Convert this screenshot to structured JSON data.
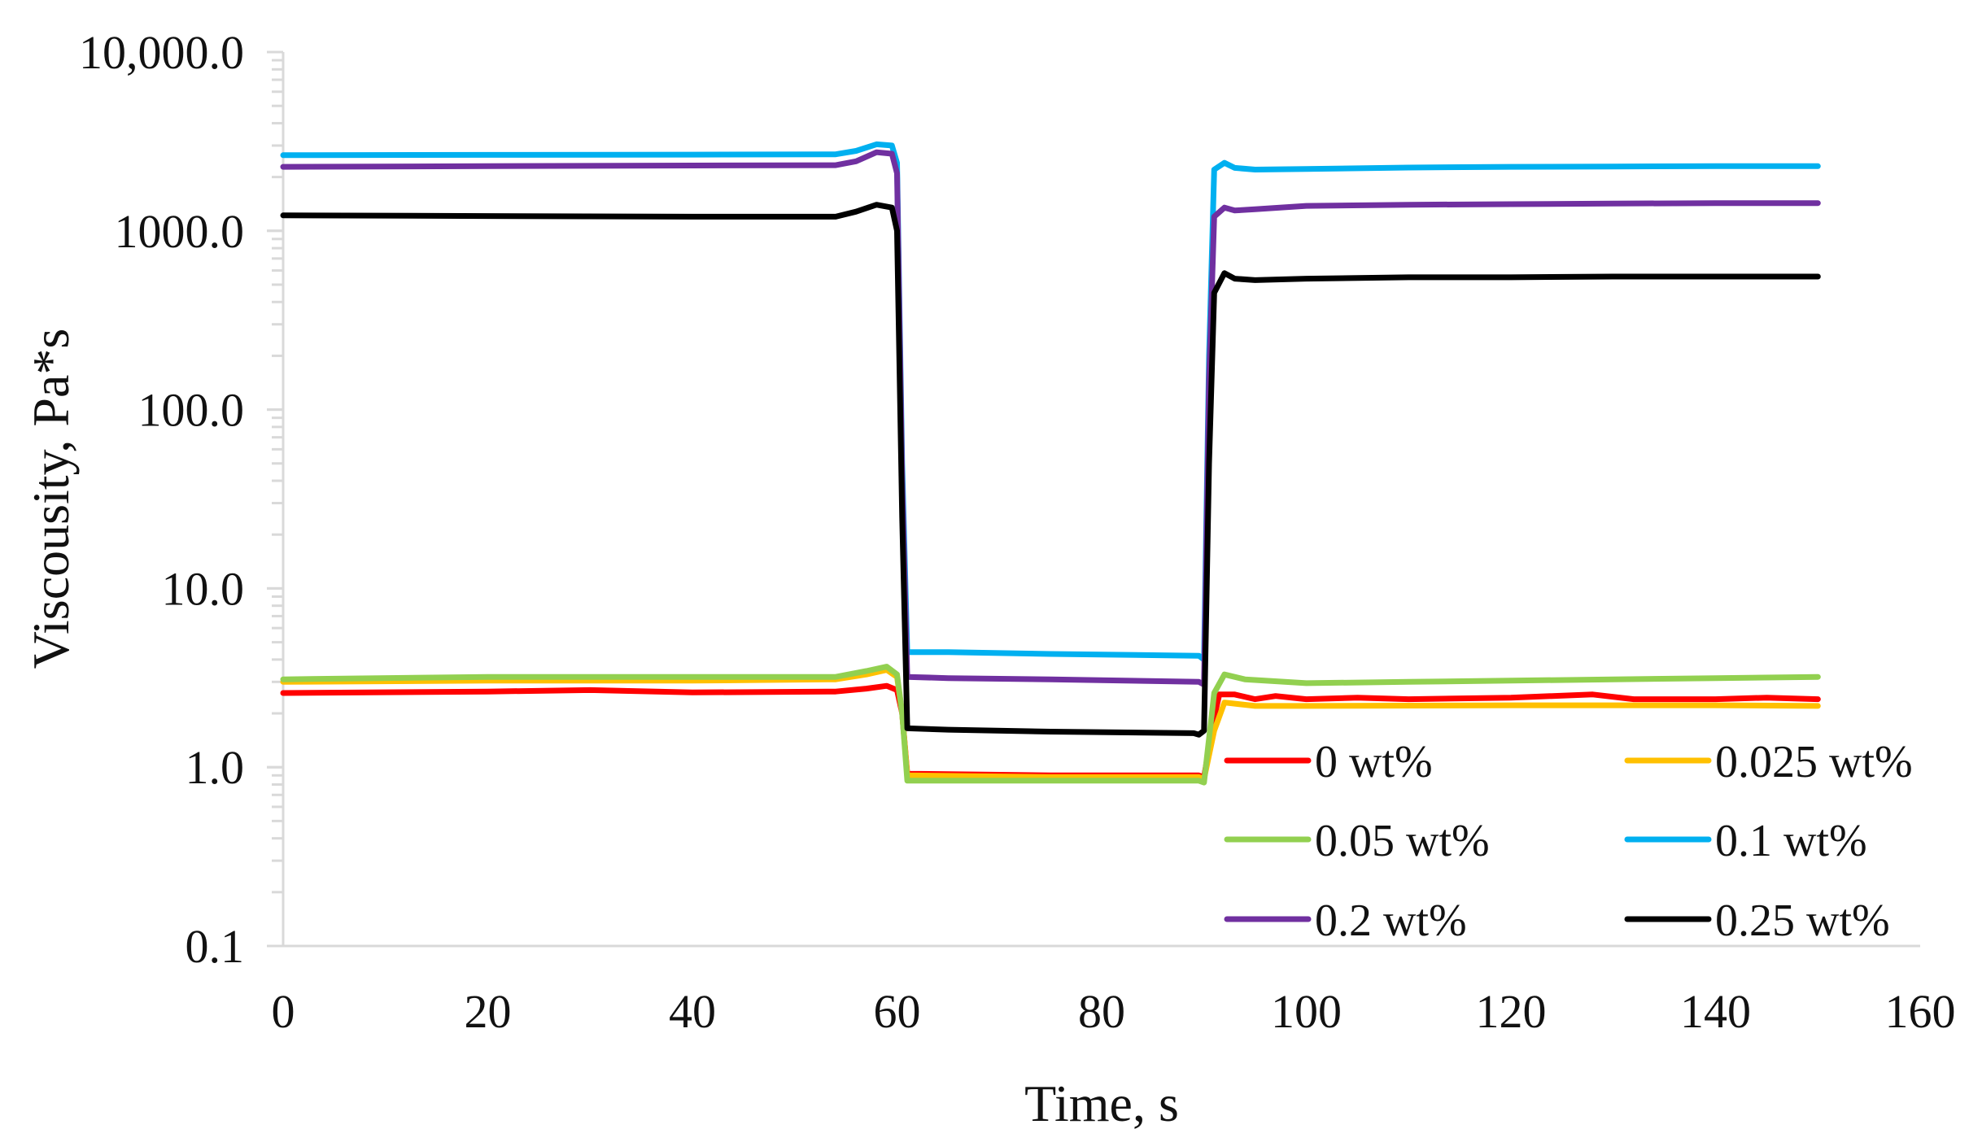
{
  "chart_data": {
    "type": "line",
    "title": "",
    "xlabel": "Time, s",
    "ylabel": "Viscousity, Pa*s",
    "xlim": [
      0,
      160
    ],
    "ylim": [
      0.1,
      10000
    ],
    "yscale": "log",
    "grid": false,
    "legend_position": "bottom-right",
    "x_ticks": [
      0,
      20,
      40,
      60,
      80,
      100,
      120,
      140,
      160
    ],
    "x_tick_labels": [
      "0",
      "20",
      "40",
      "60",
      "80",
      "100",
      "120",
      "140",
      "160"
    ],
    "y_ticks": [
      0.1,
      1,
      10,
      100,
      1000,
      10000
    ],
    "y_tick_labels": [
      "0.1",
      "1.0",
      "10.0",
      "100.0",
      "1000.0",
      "10,000.0"
    ],
    "series": [
      {
        "name": "0 wt%",
        "color": "#ff0000",
        "points": [
          [
            0,
            2.6
          ],
          [
            20,
            2.65
          ],
          [
            30,
            2.7
          ],
          [
            40,
            2.62
          ],
          [
            54,
            2.65
          ],
          [
            57,
            2.75
          ],
          [
            59,
            2.85
          ],
          [
            60,
            2.7
          ],
          [
            60.5,
            2.0
          ],
          [
            61,
            0.92
          ],
          [
            75,
            0.9
          ],
          [
            89.5,
            0.9
          ],
          [
            90,
            0.88
          ],
          [
            91,
            1.9
          ],
          [
            91.5,
            2.55
          ],
          [
            93,
            2.55
          ],
          [
            95,
            2.4
          ],
          [
            97,
            2.5
          ],
          [
            100,
            2.4
          ],
          [
            105,
            2.45
          ],
          [
            110,
            2.4
          ],
          [
            120,
            2.45
          ],
          [
            128,
            2.55
          ],
          [
            132,
            2.4
          ],
          [
            140,
            2.4
          ],
          [
            145,
            2.45
          ],
          [
            150,
            2.4
          ]
        ]
      },
      {
        "name": "0.025 wt%",
        "color": "#ffc000",
        "points": [
          [
            0,
            3.0
          ],
          [
            20,
            3.05
          ],
          [
            40,
            3.05
          ],
          [
            54,
            3.1
          ],
          [
            57,
            3.3
          ],
          [
            59,
            3.5
          ],
          [
            60,
            3.2
          ],
          [
            60.5,
            2.0
          ],
          [
            61,
            0.9
          ],
          [
            75,
            0.88
          ],
          [
            89.5,
            0.88
          ],
          [
            90,
            0.86
          ],
          [
            91,
            1.6
          ],
          [
            92,
            2.3
          ],
          [
            95,
            2.2
          ],
          [
            100,
            2.2
          ],
          [
            120,
            2.22
          ],
          [
            140,
            2.22
          ],
          [
            150,
            2.2
          ]
        ]
      },
      {
        "name": "0.05 wt%",
        "color": "#92d050",
        "points": [
          [
            0,
            3.1
          ],
          [
            20,
            3.2
          ],
          [
            40,
            3.2
          ],
          [
            54,
            3.2
          ],
          [
            57,
            3.45
          ],
          [
            59,
            3.65
          ],
          [
            60,
            3.3
          ],
          [
            60.5,
            2.0
          ],
          [
            61,
            0.84
          ],
          [
            75,
            0.84
          ],
          [
            89.5,
            0.84
          ],
          [
            90,
            0.82
          ],
          [
            91,
            2.6
          ],
          [
            92,
            3.3
          ],
          [
            94,
            3.1
          ],
          [
            100,
            2.95
          ],
          [
            110,
            3.0
          ],
          [
            120,
            3.05
          ],
          [
            130,
            3.1
          ],
          [
            140,
            3.15
          ],
          [
            150,
            3.2
          ]
        ]
      },
      {
        "name": "0.1 wt%",
        "color": "#00b0f0",
        "points": [
          [
            0,
            2650
          ],
          [
            20,
            2660
          ],
          [
            40,
            2670
          ],
          [
            54,
            2680
          ],
          [
            56,
            2800
          ],
          [
            58,
            3050
          ],
          [
            59.5,
            3000
          ],
          [
            60,
            2400
          ],
          [
            60.5,
            50
          ],
          [
            61,
            4.4
          ],
          [
            65,
            4.4
          ],
          [
            75,
            4.3
          ],
          [
            89.5,
            4.2
          ],
          [
            90,
            4.0
          ],
          [
            90.5,
            200
          ],
          [
            91,
            2200
          ],
          [
            92,
            2400
          ],
          [
            93,
            2250
          ],
          [
            95,
            2200
          ],
          [
            100,
            2220
          ],
          [
            110,
            2260
          ],
          [
            120,
            2280
          ],
          [
            130,
            2290
          ],
          [
            140,
            2300
          ],
          [
            150,
            2300
          ]
        ]
      },
      {
        "name": "0.2 wt%",
        "color": "#7030a0",
        "points": [
          [
            0,
            2280
          ],
          [
            20,
            2300
          ],
          [
            40,
            2320
          ],
          [
            54,
            2330
          ],
          [
            56,
            2450
          ],
          [
            58,
            2750
          ],
          [
            59.5,
            2700
          ],
          [
            60,
            2100
          ],
          [
            60.5,
            40
          ],
          [
            61,
            3.2
          ],
          [
            65,
            3.15
          ],
          [
            75,
            3.1
          ],
          [
            89.5,
            3.0
          ],
          [
            90,
            2.9
          ],
          [
            90.5,
            150
          ],
          [
            91,
            1200
          ],
          [
            92,
            1350
          ],
          [
            93,
            1300
          ],
          [
            95,
            1320
          ],
          [
            100,
            1380
          ],
          [
            110,
            1400
          ],
          [
            120,
            1410
          ],
          [
            130,
            1420
          ],
          [
            140,
            1430
          ],
          [
            150,
            1430
          ]
        ]
      },
      {
        "name": "0.25 wt%",
        "color": "#000000",
        "points": [
          [
            0,
            1220
          ],
          [
            20,
            1210
          ],
          [
            40,
            1200
          ],
          [
            54,
            1200
          ],
          [
            56,
            1280
          ],
          [
            58,
            1400
          ],
          [
            59.5,
            1350
          ],
          [
            60,
            1000
          ],
          [
            60.5,
            25
          ],
          [
            61,
            1.65
          ],
          [
            65,
            1.62
          ],
          [
            75,
            1.58
          ],
          [
            89,
            1.55
          ],
          [
            89.5,
            1.52
          ],
          [
            90,
            1.6
          ],
          [
            90.5,
            50
          ],
          [
            91,
            450
          ],
          [
            92,
            580
          ],
          [
            93,
            540
          ],
          [
            95,
            530
          ],
          [
            100,
            540
          ],
          [
            110,
            550
          ],
          [
            120,
            550
          ],
          [
            130,
            555
          ],
          [
            140,
            555
          ],
          [
            150,
            555
          ]
        ]
      }
    ]
  }
}
